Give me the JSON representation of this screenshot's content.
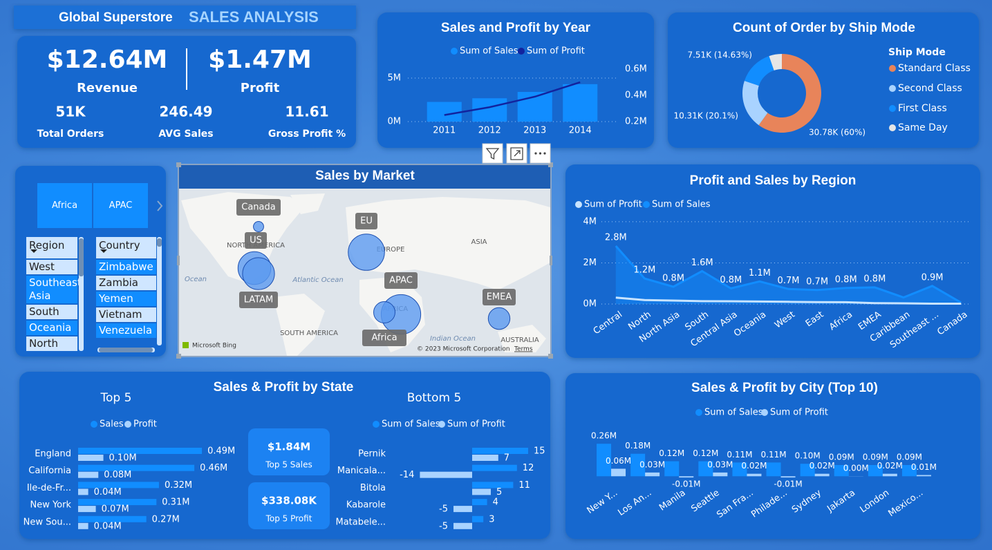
{
  "header": {
    "title": "Global Superstore",
    "subtitle": "SALES ANALYSIS"
  },
  "kpis": [
    {
      "value": "$12.64M",
      "label": "Revenue"
    },
    {
      "value": "$1.47M",
      "label": "Profit"
    },
    {
      "value": "51K",
      "label": "Total Orders"
    },
    {
      "value": "246.49",
      "label": "AVG Sales"
    },
    {
      "value": "11.61",
      "label": "Gross Profit %"
    }
  ],
  "slicers": {
    "markets": [
      "Africa",
      "APAC"
    ],
    "region": {
      "header": "Region",
      "items": [
        "West",
        "Southeast Asia",
        "South",
        "Oceania",
        "North"
      ]
    },
    "country": {
      "header": "Country",
      "items": [
        "Zimbabwe",
        "Zambia",
        "Yemen",
        "Vietnam",
        "Venezuela"
      ]
    }
  },
  "state_panel": {
    "title": "Sales & Profit by State",
    "cards": [
      {
        "value": "$1.84M",
        "label": "Top 5 Sales"
      },
      {
        "value": "$338.08K",
        "label": "Top 5 Profit"
      }
    ]
  },
  "chart_data": [
    {
      "type": "combo",
      "title": "Sales and Profit by Year",
      "categories": [
        "2011",
        "2012",
        "2013",
        "2014"
      ],
      "series": [
        {
          "name": "Sum of Sales",
          "color": "#118dff",
          "mark": "bar",
          "values": [
            2260000,
            2680000,
            3410000,
            4300000
          ]
        },
        {
          "name": "Sum of Profit",
          "color": "#12239e",
          "mark": "line",
          "axis": "y2",
          "values": [
            250000,
            310000,
            390000,
            500000
          ]
        }
      ],
      "ylim": [
        0,
        6030000
      ],
      "yticks": [
        {
          "value": 0,
          "label": "0M"
        },
        {
          "value": 5000000,
          "label": "5M"
        }
      ],
      "y2lim": [
        200000,
        600000
      ],
      "y2ticks": [
        {
          "value": 200000,
          "label": "0.2M"
        },
        {
          "value": 400000,
          "label": "0.4M"
        },
        {
          "value": 600000,
          "label": "0.6M"
        }
      ],
      "grid": true,
      "legend": "top"
    },
    {
      "type": "donut",
      "title": "Count of Order by Ship Mode",
      "legend_title": "Ship Mode",
      "categories": [
        "Standard Class",
        "Second Class",
        "First Class",
        "Same Day"
      ],
      "values": [
        30780,
        10310,
        7510,
        2700
      ],
      "value_labels": [
        "30.78K (60%)",
        "10.31K (20.1%)",
        "7.51K (14.63%)",
        null
      ],
      "colors": [
        "#e8845a",
        "#a9d3ff",
        "#118dff",
        "#e6e6e6"
      ],
      "legend": "right"
    },
    {
      "type": "bubble-map",
      "title": "Sales by Market",
      "categories": [
        "Canada",
        "US",
        "EU",
        "APAC",
        "LATAM",
        "EMEA",
        "Africa"
      ],
      "values": [
        70000,
        2300000,
        2940000,
        3590000,
        2160000,
        810000,
        780000
      ],
      "color": "#5b9af0",
      "place_labels": [
        "NORTH AMERICA",
        "EUROPE",
        "ASIA",
        "Atlantic Ocean",
        "Ocean",
        "SOUTH AMERICA",
        "AFRICA",
        "Indian Ocean",
        "AUSTRALIA"
      ],
      "credits": [
        "Microsoft Bing",
        "© 2023 Microsoft Corporation",
        "Terms"
      ]
    },
    {
      "type": "area",
      "title": "Profit and Sales by Region",
      "categories": [
        "Central",
        "North",
        "North Asia",
        "South",
        "Central Asia",
        "Oceania",
        "West",
        "East",
        "Africa",
        "EMEA",
        "Caribbean",
        "Southeast ...",
        "Canada"
      ],
      "series": [
        {
          "name": "Sum of Profit",
          "color": "#c8e4ff",
          "values": [
            311000,
            194000,
            166000,
            140000,
            133000,
            120000,
            108000,
            91000,
            89000,
            43000,
            35000,
            17000,
            18000
          ]
        },
        {
          "name": "Sum of Sales",
          "color": "#118dff",
          "values": [
            2820000,
            1240000,
            840000,
            1600000,
            760000,
            1100000,
            730000,
            680000,
            780000,
            810000,
            320000,
            880000,
            70000
          ],
          "value_labels": [
            "2.8M",
            "1.2M",
            "0.8M",
            "1.6M",
            "0.8M",
            "1.1M",
            "0.7M",
            "0.7M",
            "0.8M",
            "0.8M",
            null,
            "0.9M",
            null
          ]
        }
      ],
      "ylim": [
        0,
        4300000
      ],
      "yticks": [
        {
          "value": 0,
          "label": "0M"
        },
        {
          "value": 2000000,
          "label": "2M"
        },
        {
          "value": 4000000,
          "label": "4M"
        }
      ],
      "grid": true,
      "legend": "top-left"
    },
    {
      "type": "hbar",
      "title": "Top 5",
      "categories": [
        "England",
        "California",
        "Ile-de-Fr...",
        "New York",
        "New Sou..."
      ],
      "series": [
        {
          "name": "Sales",
          "color": "#118dff",
          "values": [
            490000,
            460000,
            320000,
            310000,
            270000
          ],
          "value_labels": [
            "0.49M",
            "0.46M",
            "0.32M",
            "0.31M",
            "0.27M"
          ]
        },
        {
          "name": "Profit",
          "color": "#a9d3ff",
          "values": [
            100000,
            80000,
            40000,
            70000,
            40000
          ],
          "value_labels": [
            "0.10M",
            "0.08M",
            "0.04M",
            "0.07M",
            "0.04M"
          ]
        }
      ],
      "xlim": [
        0,
        550000
      ],
      "legend": "top"
    },
    {
      "type": "hbar",
      "title": "Bottom 5",
      "categories": [
        "Pernik",
        "Manicala...",
        "Bitola",
        "Kabarole",
        "Matabele..."
      ],
      "series": [
        {
          "name": "Sum of Sales",
          "color": "#118dff",
          "values": [
            15,
            12,
            11,
            4,
            3
          ]
        },
        {
          "name": "Sum of Profit",
          "color": "#a9d3ff",
          "values": [
            7,
            -14,
            5,
            -5,
            -5
          ]
        }
      ],
      "xlim": [
        -15,
        20
      ],
      "legend": "top"
    },
    {
      "type": "column",
      "title": "Sales & Profit by City (Top 10)",
      "categories": [
        "New Y...",
        "Los An...",
        "Manila",
        "Seattle",
        "San Fra...",
        "Philade...",
        "Sydney",
        "Jakarta",
        "London",
        "Mexico..."
      ],
      "series": [
        {
          "name": "Sum of Sales",
          "color": "#118dff",
          "values": [
            260000,
            180000,
            120000,
            120000,
            110000,
            110000,
            100000,
            90000,
            90000,
            90000
          ],
          "value_labels": [
            "0.26M",
            "0.18M",
            "0.12M",
            "0.12M",
            "0.11M",
            "0.11M",
            "0.10M",
            "0.09M",
            "0.09M",
            "0.09M"
          ]
        },
        {
          "name": "Sum of Profit",
          "color": "#a9d3ff",
          "values": [
            60000,
            30000,
            -10000,
            30000,
            20000,
            -10000,
            20000,
            1000,
            20000,
            10000
          ],
          "value_labels": [
            "0.06M",
            "0.03M",
            "-0.01M",
            "0.03M",
            "0.02M",
            "-0.01M",
            "0.02M",
            "0.00M",
            "0.02M",
            "0.01M"
          ]
        }
      ],
      "ylim": [
        -30000,
        300000
      ],
      "legend": "top"
    }
  ]
}
